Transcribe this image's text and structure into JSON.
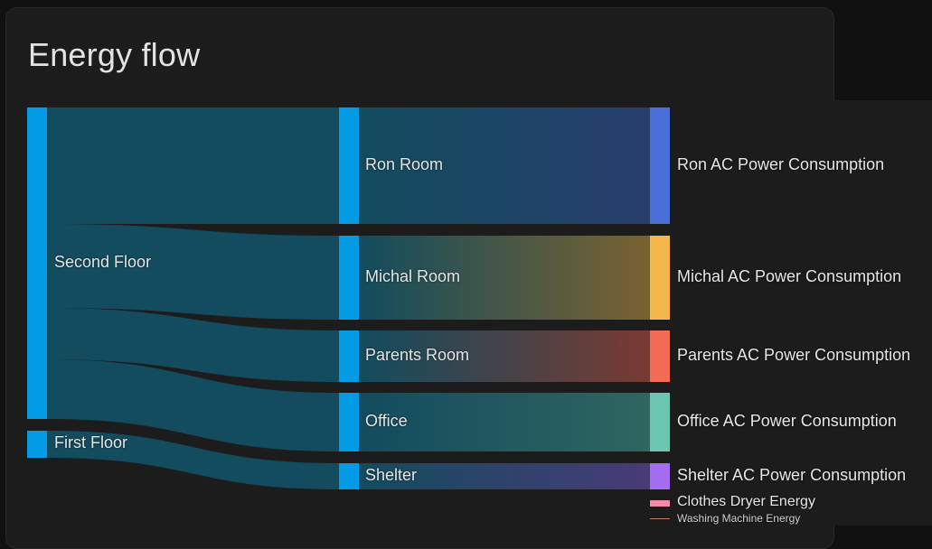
{
  "card": {
    "title": "Energy flow"
  },
  "nodes": {
    "floors": [
      {
        "label": "Second Floor",
        "color": "#039be5"
      },
      {
        "label": "First Floor",
        "color": "#039be5"
      }
    ],
    "rooms": [
      {
        "label": "Ron Room",
        "color": "#039be5"
      },
      {
        "label": "Michal Room",
        "color": "#039be5"
      },
      {
        "label": "Parents Room",
        "color": "#039be5"
      },
      {
        "label": "Office",
        "color": "#039be5"
      },
      {
        "label": "Shelter",
        "color": "#039be5"
      }
    ],
    "devices": [
      {
        "label": "Ron AC Power Consumption",
        "color": "#4a6fd6"
      },
      {
        "label": "Michal AC Power Consumption",
        "color": "#f2b84b"
      },
      {
        "label": "Parents AC Power Consumption",
        "color": "#f26b55"
      },
      {
        "label": "Office AC Power Consumption",
        "color": "#6cc6b1"
      },
      {
        "label": "Shelter AC Power Consumption",
        "color": "#a66cf2"
      },
      {
        "label": "Clothes Dryer Energy",
        "color": "#f08aa8"
      },
      {
        "label": "Washing Machine Energy",
        "color": "#c47a6a"
      }
    ]
  },
  "colors": {
    "link": "#124c5e",
    "background": "#1c1c1c"
  }
}
